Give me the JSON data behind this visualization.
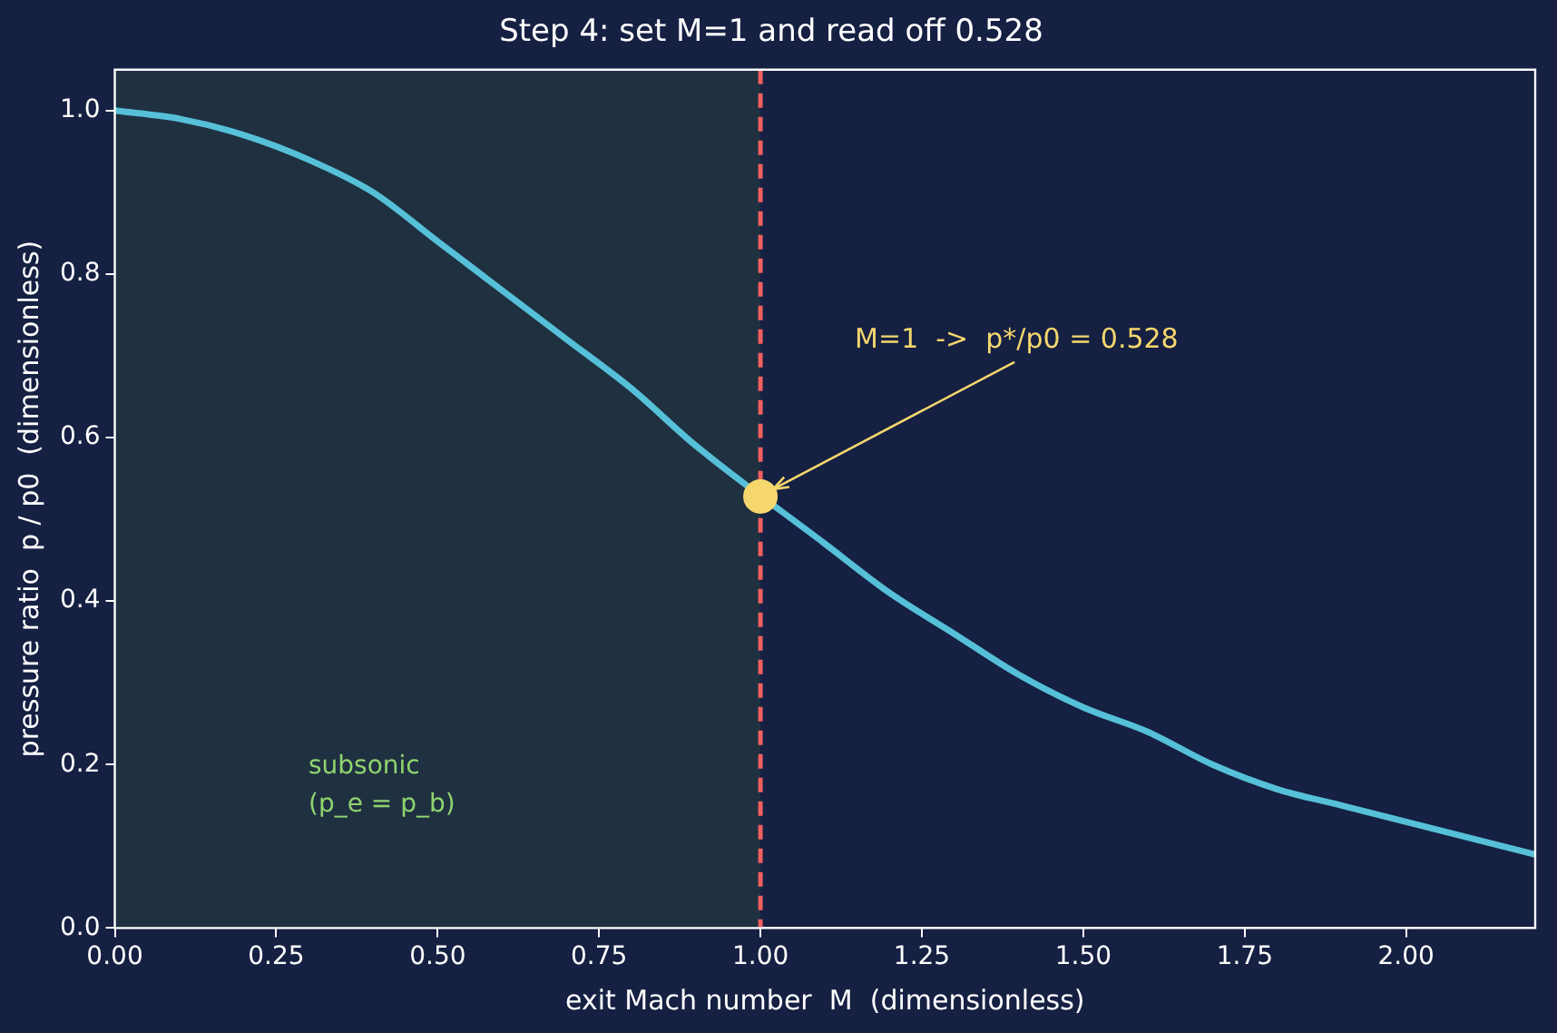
{
  "chart_data": {
    "type": "line",
    "title": "Step 4: set M=1 and read off 0.528",
    "xlabel": "exit Mach number  M  (dimensionless)",
    "ylabel": "pressure ratio  p / p0  (dimensionless)",
    "x": [
      0,
      0.1,
      0.2,
      0.3,
      0.4,
      0.5,
      0.6,
      0.7,
      0.8,
      0.9,
      1.0,
      1.1,
      1.2,
      1.3,
      1.4,
      1.5,
      1.6,
      1.7,
      1.8,
      1.9,
      2.0,
      2.1,
      2.2
    ],
    "series": [
      {
        "color": "#56c0d8",
        "values": [
          1.0,
          0.99,
          0.97,
          0.94,
          0.9,
          0.84,
          0.78,
          0.72,
          0.66,
          0.59,
          null,
          0.47,
          0.41,
          0.36,
          0.31,
          0.27,
          0.24,
          0.2,
          0.17,
          0.15,
          0.13,
          0.11,
          0.09
        ]
      },
      {
        "type": "scatter",
        "x": [
          1.0
        ],
        "color": "#f5d76e",
        "marker": "circle",
        "values": [
          0.528
        ]
      }
    ],
    "xlim": [
      0,
      2.2
    ],
    "ylim": [
      0,
      1.05
    ],
    "xticks": [
      {
        "value": 0,
        "label": "0.00"
      },
      {
        "value": 0.25,
        "label": "0.25"
      },
      {
        "value": 0.5,
        "label": "0.50"
      },
      {
        "value": 0.75,
        "label": "0.75"
      },
      {
        "value": 1,
        "label": "1.00"
      },
      {
        "value": 1.25,
        "label": "1.25"
      },
      {
        "value": 1.5,
        "label": "1.50"
      },
      {
        "value": 1.75,
        "label": "1.75"
      },
      {
        "value": 2,
        "label": "2.00"
      }
    ],
    "yticks": [
      {
        "value": 0,
        "label": "0.0"
      },
      {
        "value": 0.2,
        "label": "0.2"
      },
      {
        "value": 0.4,
        "label": "0.4"
      },
      {
        "value": 0.6,
        "label": "0.6"
      },
      {
        "value": 0.8,
        "label": "0.8"
      },
      {
        "value": 1,
        "label": "1.0"
      }
    ],
    "ref_lines": [
      {
        "axis": "x",
        "value": 1,
        "color": "#ef5f5f",
        "line_style": "dashed"
      }
    ],
    "bands": [
      {
        "axis": "x",
        "from": 0,
        "to": 1,
        "label": "subsonic\n(p_e = p_b)",
        "color": "#1f3040"
      }
    ],
    "annotations": [
      {
        "text": "M=1  ->  p*/p0 = 0.528",
        "x": 1,
        "y": 0.528
      }
    ],
    "grid": false,
    "legend": false,
    "line_style": "solid",
    "marker": "none"
  }
}
